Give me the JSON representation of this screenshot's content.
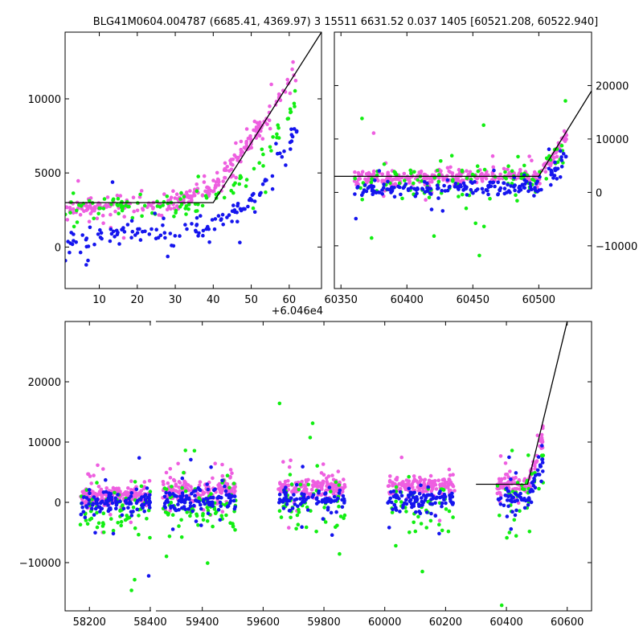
{
  "figure_title": "BLG41M0604.004787 (6685.41, 4369.97) 3 15511 6631.52 0.037 1405 [60521.208, 60522.940]",
  "colors": {
    "pink": "#ee5fe0",
    "green": "#12ee12",
    "blue": "#1515ee",
    "model": "#000000"
  },
  "chart_data": [
    {
      "id": "zoom-recent",
      "type": "scatter",
      "xlim": [
        1,
        68.5
      ],
      "ylim": [
        -2800,
        14500
      ],
      "xticks": [
        10,
        20,
        30,
        40,
        50,
        60
      ],
      "yticks": [
        0,
        5000,
        10000
      ],
      "x_offset_label": "+6.046e4",
      "model_line": [
        [
          1,
          3000
        ],
        [
          40,
          3000
        ],
        [
          68.5,
          14500
        ]
      ],
      "series": [
        {
          "color": "pink",
          "trend": [
            [
              1,
              2600
            ],
            [
              30,
              3000
            ],
            [
              40,
              4000
            ],
            [
              48,
              6500
            ],
            [
              55,
              9000
            ],
            [
              62,
              11500
            ]
          ],
          "scatter": 700,
          "count": 260
        },
        {
          "color": "green",
          "trend": [
            [
              1,
              2500
            ],
            [
              30,
              2800
            ],
            [
              40,
              3000
            ],
            [
              50,
              5000
            ],
            [
              55,
              7000
            ],
            [
              62,
              10000
            ]
          ],
          "scatter": 900,
          "count": 110
        },
        {
          "color": "blue",
          "trend": [
            [
              1,
              0
            ],
            [
              10,
              800
            ],
            [
              20,
              1000
            ],
            [
              30,
              800
            ],
            [
              40,
              1500
            ],
            [
              50,
              3000
            ],
            [
              55,
              5000
            ],
            [
              62,
              8000
            ]
          ],
          "scatter": 900,
          "count": 140
        }
      ]
    },
    {
      "id": "season-2024",
      "type": "scatter",
      "xlim": [
        60345,
        60540
      ],
      "ylim": [
        -18000,
        30000
      ],
      "xticks": [
        60350,
        60400,
        60450,
        60500
      ],
      "yticks": [
        -10000,
        0,
        10000,
        20000
      ],
      "y_axis_side": "right",
      "model_line": [
        [
          60345,
          3000
        ],
        [
          60500,
          3000
        ],
        [
          60540,
          19000
        ]
      ],
      "series": [
        {
          "color": "pink",
          "trend": [
            [
              60360,
              2500
            ],
            [
              60500,
              3000
            ],
            [
              60510,
              6000
            ],
            [
              60521,
              11000
            ]
          ],
          "scatter": 1500,
          "count": 320
        },
        {
          "color": "green",
          "trend": [
            [
              60360,
              1500
            ],
            [
              60500,
              2500
            ],
            [
              60521,
              9000
            ]
          ],
          "scatter": 4000,
          "count": 120
        },
        {
          "color": "blue",
          "trend": [
            [
              60360,
              500
            ],
            [
              60500,
              800
            ],
            [
              60521,
              7000
            ]
          ],
          "scatter": 1800,
          "count": 190
        }
      ]
    },
    {
      "id": "full-light-curve",
      "type": "scatter",
      "xlim": [
        58120,
        60680
      ],
      "ylim": [
        -18000,
        30000
      ],
      "xticks": [
        58200,
        58400,
        59400,
        59600,
        59800,
        60000,
        60200,
        60400,
        60600
      ],
      "yticks": [
        -10000,
        0,
        10000,
        20000
      ],
      "x_break": [
        58400,
        59250
      ],
      "model_line": [
        [
          60300,
          3000
        ],
        [
          60470,
          3000
        ],
        [
          60600,
          30000
        ]
      ],
      "seasons": [
        [
          58170,
          58410
        ],
        [
          59270,
          59510
        ],
        [
          59650,
          59870
        ],
        [
          60010,
          60230
        ],
        [
          60370,
          60521
        ]
      ],
      "series": [
        {
          "color": "pink",
          "trend": [
            [
              58170,
              1000
            ],
            [
              60470,
              3000
            ],
            [
              60521,
              11000
            ]
          ],
          "scatter": 1700,
          "count": 820
        },
        {
          "color": "green",
          "trend": [
            [
              58170,
              -1500
            ],
            [
              60470,
              0
            ],
            [
              60521,
              8000
            ]
          ],
          "scatter": 5000,
          "count": 300
        },
        {
          "color": "blue",
          "trend": [
            [
              58170,
              0
            ],
            [
              60470,
              500
            ],
            [
              60521,
              8000
            ]
          ],
          "scatter": 2200,
          "count": 480
        }
      ]
    }
  ]
}
